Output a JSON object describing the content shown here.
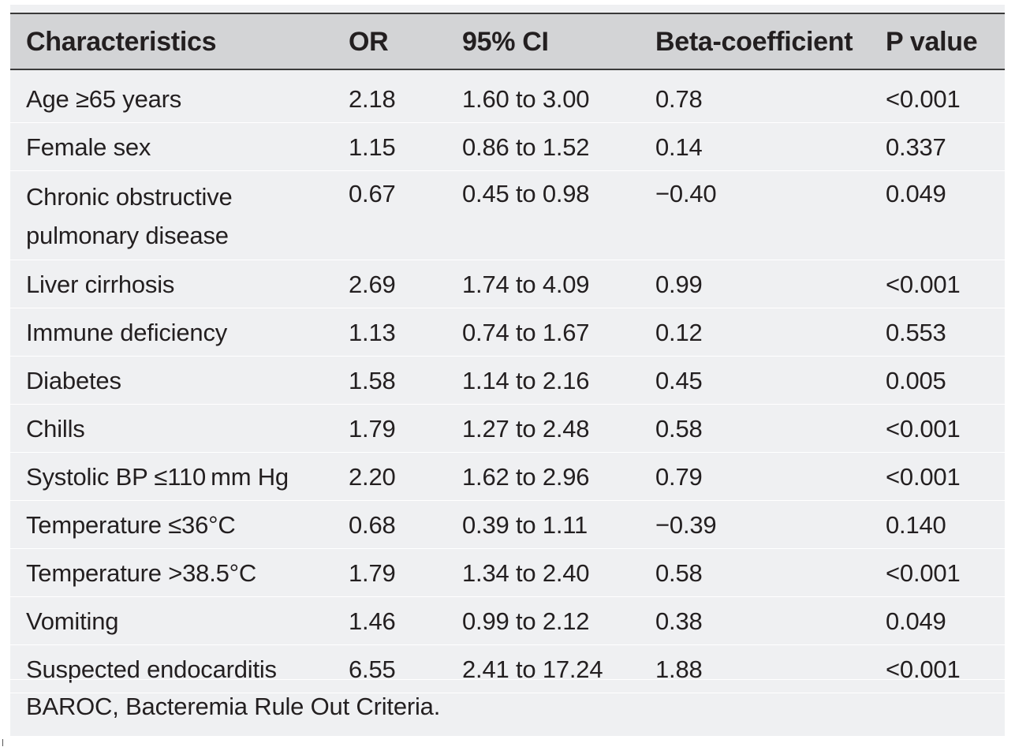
{
  "table": {
    "headers": [
      "Characteristics",
      "OR",
      "95% CI",
      "Beta-coefficient",
      "P value"
    ],
    "rows": [
      [
        "Age ≥65 years",
        "2.18",
        "1.60 to 3.00",
        "0.78",
        "<0.001"
      ],
      [
        "Female sex",
        "1.15",
        "0.86 to 1.52",
        "0.14",
        "0.337"
      ],
      [
        "Chronic obstructive pulmonary disease",
        "0.67",
        "0.45 to 0.98",
        "−0.40",
        "0.049"
      ],
      [
        "Liver cirrhosis",
        "2.69",
        "1.74 to 4.09",
        "0.99",
        "<0.001"
      ],
      [
        "Immune deficiency",
        "1.13",
        "0.74 to 1.67",
        "0.12",
        "0.553"
      ],
      [
        "Diabetes",
        "1.58",
        "1.14 to 2.16",
        "0.45",
        "0.005"
      ],
      [
        "Chills",
        "1.79",
        "1.27 to 2.48",
        "0.58",
        "<0.001"
      ],
      [
        "Systolic BP ≤110 mm Hg",
        "2.20",
        "1.62 to 2.96",
        "0.79",
        "<0.001"
      ],
      [
        "Temperature ≤36°C",
        "0.68",
        "0.39 to 1.11",
        "−0.39",
        "0.140"
      ],
      [
        "Temperature >38.5°C",
        "1.79",
        "1.34 to 2.40",
        "0.58",
        "<0.001"
      ],
      [
        "Vomiting",
        "1.46",
        "0.99 to 2.12",
        "0.38",
        "0.049"
      ],
      [
        "Suspected endocarditis",
        "6.55",
        "2.41 to 17.24",
        "1.88",
        "<0.001"
      ]
    ],
    "footnote": "BAROC, Bacteremia Rule Out Criteria."
  },
  "colors": {
    "panel_background": "#eff0f2",
    "header_background": "#d3d4d6",
    "text": "#231f20",
    "rule": "#3a3a3a"
  }
}
